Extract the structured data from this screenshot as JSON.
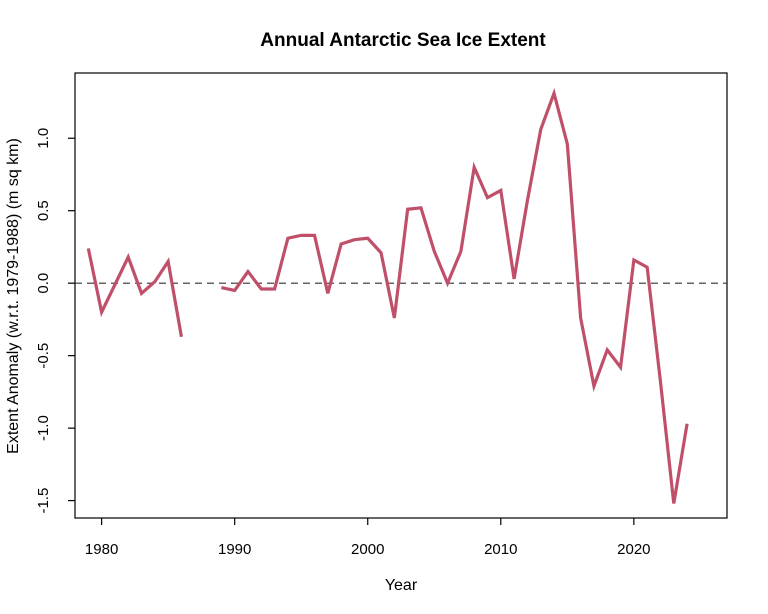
{
  "chart_data": {
    "type": "line",
    "title": "Annual Antarctic Sea Ice Extent",
    "xlabel": "Year",
    "ylabel": "Extent Anomaly (w.r.t. 1979-1988) (m sq km)",
    "xlim": [
      1978,
      2027
    ],
    "ylim": [
      -1.62,
      1.45
    ],
    "x_ticks": [
      1980,
      1990,
      2000,
      2010,
      2020
    ],
    "x_tick_labels": [
      "1980",
      "1990",
      "2000",
      "2010",
      "2020"
    ],
    "y_ticks": [
      -1.5,
      -1.0,
      -0.5,
      0.0,
      0.5,
      1.0
    ],
    "y_tick_labels": [
      "-1.5",
      "-1.0",
      "-0.5",
      "0.0",
      "0.5",
      "1.0"
    ],
    "reference_line": {
      "y": 0.0,
      "style": "dashed"
    },
    "grid": false,
    "series": [
      {
        "color": "#c0506a",
        "x": [
          1979,
          1980,
          1981,
          1982,
          1983,
          1984,
          1985,
          1986,
          1987,
          1988,
          1989,
          1990,
          1991,
          1992,
          1993,
          1994,
          1995,
          1996,
          1997,
          1998,
          1999,
          2000,
          2001,
          2002,
          2003,
          2004,
          2005,
          2006,
          2007,
          2008,
          2009,
          2010,
          2011,
          2012,
          2013,
          2014,
          2015,
          2016,
          2017,
          2018,
          2019,
          2020,
          2021,
          2022,
          2023,
          2024
        ],
        "values": [
          0.24,
          -0.2,
          -0.01,
          0.18,
          -0.07,
          0.01,
          0.15,
          -0.37,
          null,
          null,
          -0.03,
          -0.05,
          0.08,
          -0.04,
          -0.04,
          0.31,
          0.33,
          0.33,
          -0.07,
          0.27,
          0.3,
          0.31,
          0.21,
          -0.24,
          0.51,
          0.52,
          0.22,
          0.0,
          0.22,
          0.8,
          0.59,
          0.64,
          0.03,
          0.57,
          1.06,
          1.31,
          0.96,
          -0.24,
          -0.71,
          -0.46,
          -0.58,
          0.16,
          0.11,
          -0.68,
          -1.52,
          -0.97
        ]
      }
    ]
  }
}
